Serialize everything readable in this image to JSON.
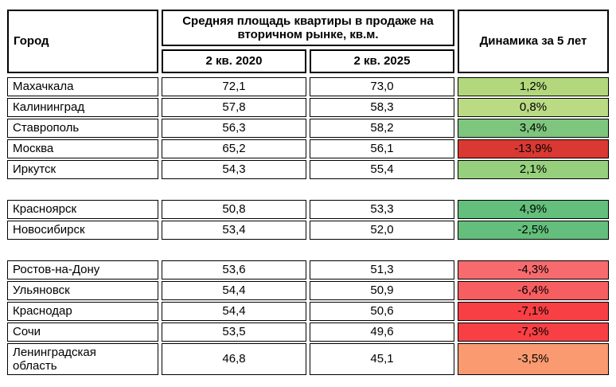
{
  "table": {
    "header": {
      "city": "Город",
      "metric": "Средняя площадь квартиры в продаже на вторичном рынке, кв.м.",
      "col_2020": "2 кв. 2020",
      "col_2025": "2 кв. 2025",
      "dynamics": "Динамика за 5 лет"
    },
    "groups": [
      {
        "rows": [
          {
            "city": "Махачкала",
            "q2_2020": "72,1",
            "q2_2025": "73,0",
            "dynamics": "1,2%",
            "color": "#b3d77c"
          },
          {
            "city": "Калининград",
            "q2_2020": "57,8",
            "q2_2025": "58,3",
            "dynamics": "0,8%",
            "color": "#bada84"
          },
          {
            "city": "Ставрополь",
            "q2_2020": "56,3",
            "q2_2025": "58,2",
            "dynamics": "3,4%",
            "color": "#7ec57e"
          },
          {
            "city": "Москва",
            "q2_2020": "65,2",
            "q2_2025": "56,1",
            "dynamics": "-13,9%",
            "color": "#da3832"
          },
          {
            "city": "Иркутск",
            "q2_2020": "54,3",
            "q2_2025": "55,4",
            "dynamics": "2,1%",
            "color": "#97d07d"
          }
        ]
      },
      {
        "rows": [
          {
            "city": "Красноярск",
            "q2_2020": "50,8",
            "q2_2025": "53,3",
            "dynamics": "4,9%",
            "color": "#63bf7b"
          },
          {
            "city": "Новосибирск",
            "q2_2020": "53,4",
            "q2_2025": "52,0",
            "dynamics": "-2,5%",
            "color": "#63bf7b"
          }
        ]
      },
      {
        "rows": [
          {
            "city": "Ростов-на-Дону",
            "q2_2020": "53,6",
            "q2_2025": "51,3",
            "dynamics": "-4,3%",
            "color": "#f76b6e"
          },
          {
            "city": "Ульяновск",
            "q2_2020": "54,4",
            "q2_2025": "50,9",
            "dynamics": "-6,4%",
            "color": "#f75e61"
          },
          {
            "city": "Краснодар",
            "q2_2020": "54,4",
            "q2_2025": "50,6",
            "dynamics": "-7,1%",
            "color": "#f84044"
          },
          {
            "city": "Сочи",
            "q2_2020": "53,5",
            "q2_2025": "49,6",
            "dynamics": "-7,3%",
            "color": "#f84044"
          },
          {
            "city": "Ленинградская\nобласть",
            "q2_2020": "46,8",
            "q2_2025": "45,1",
            "dynamics": "-3,5%",
            "color": "#f99a70"
          }
        ]
      }
    ]
  },
  "colors": {
    "border": "#000000",
    "background": "#ffffff",
    "text": "#000000"
  },
  "chart_data": {
    "type": "table",
    "title": "Средняя площадь квартиры в продаже на вторичном рынке, кв.м.",
    "columns": [
      "Город",
      "2 кв. 2020",
      "2 кв. 2025",
      "Динамика за 5 лет"
    ],
    "rows": [
      {
        "city": "Махачкала",
        "q2_2020": 72.1,
        "q2_2025": 73.0,
        "dynamics_pct": 1.2
      },
      {
        "city": "Калининград",
        "q2_2020": 57.8,
        "q2_2025": 58.3,
        "dynamics_pct": 0.8
      },
      {
        "city": "Ставрополь",
        "q2_2020": 56.3,
        "q2_2025": 58.2,
        "dynamics_pct": 3.4
      },
      {
        "city": "Москва",
        "q2_2020": 65.2,
        "q2_2025": 56.1,
        "dynamics_pct": -13.9
      },
      {
        "city": "Иркутск",
        "q2_2020": 54.3,
        "q2_2025": 55.4,
        "dynamics_pct": 2.1
      },
      {
        "city": "Красноярск",
        "q2_2020": 50.8,
        "q2_2025": 53.3,
        "dynamics_pct": 4.9
      },
      {
        "city": "Новосибирск",
        "q2_2020": 53.4,
        "q2_2025": 52.0,
        "dynamics_pct": -2.5
      },
      {
        "city": "Ростов-на-Дону",
        "q2_2020": 53.6,
        "q2_2025": 51.3,
        "dynamics_pct": -4.3
      },
      {
        "city": "Ульяновск",
        "q2_2020": 54.4,
        "q2_2025": 50.9,
        "dynamics_pct": -6.4
      },
      {
        "city": "Краснодар",
        "q2_2020": 54.4,
        "q2_2025": 50.6,
        "dynamics_pct": -7.1
      },
      {
        "city": "Сочи",
        "q2_2020": 53.5,
        "q2_2025": 49.6,
        "dynamics_pct": -7.3
      },
      {
        "city": "Ленинградская область",
        "q2_2020": 46.8,
        "q2_2025": 45.1,
        "dynamics_pct": -3.5
      }
    ],
    "notes": "Conditional color scale on dynamics column: green for growth, red for decline; rows separated into three visual groups"
  }
}
